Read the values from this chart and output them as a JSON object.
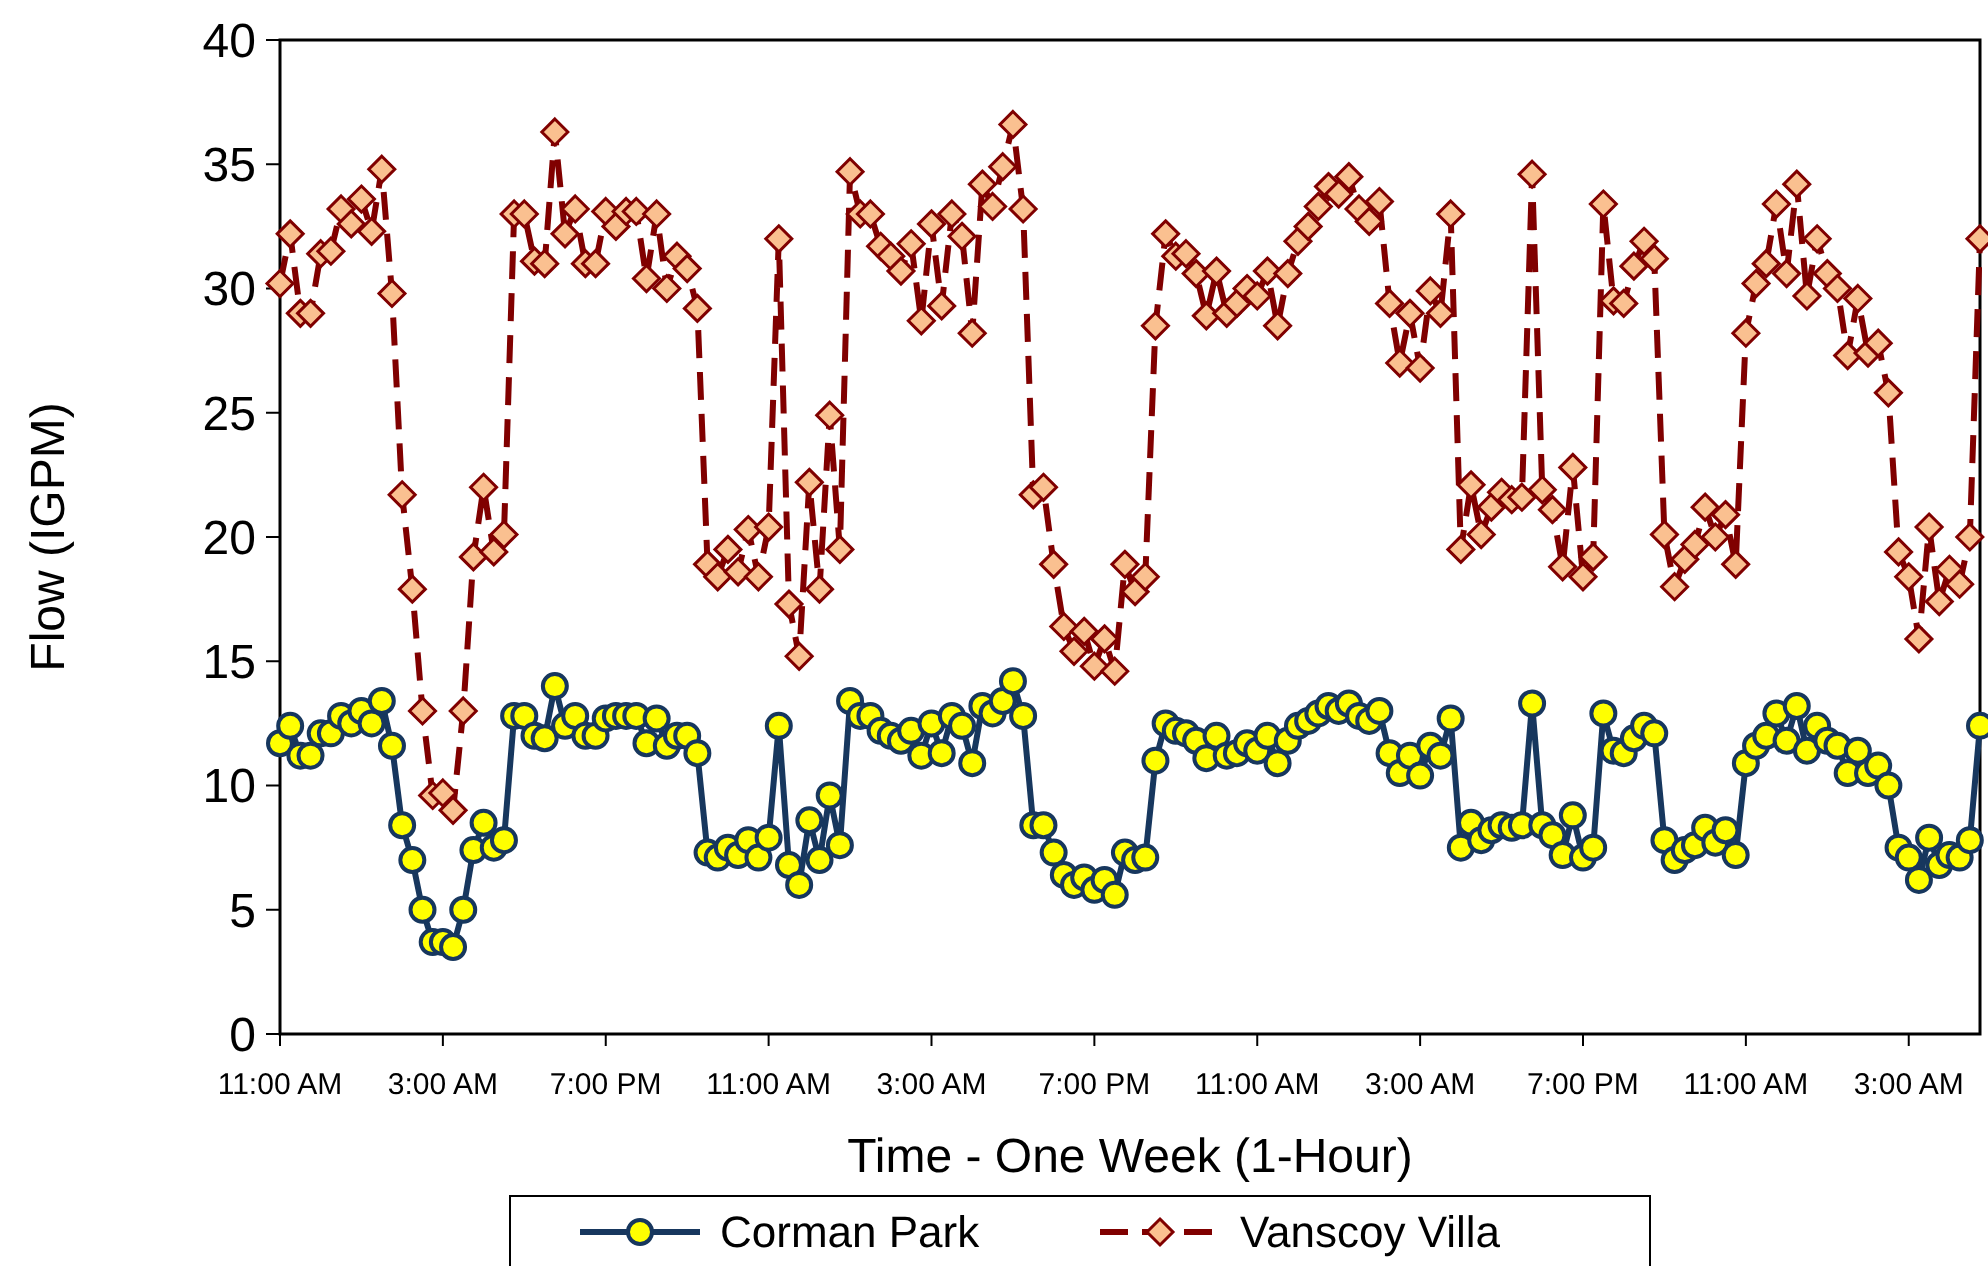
{
  "chart_data": {
    "type": "line",
    "xlabel": "Time - One Week (1-Hour)",
    "ylabel": "Flow (IGPM)",
    "categories": [
      "11:00 AM",
      null,
      null,
      null,
      null,
      null,
      null,
      null,
      null,
      null,
      null,
      null,
      null,
      null,
      null,
      null,
      "3:00 AM",
      null,
      null,
      null,
      null,
      null,
      null,
      null,
      null,
      null,
      null,
      null,
      null,
      null,
      null,
      null,
      "7:00 PM",
      null,
      null,
      null,
      null,
      null,
      null,
      null,
      null,
      null,
      null,
      null,
      null,
      null,
      null,
      null,
      "11:00 AM",
      null,
      null,
      null,
      null,
      null,
      null,
      null,
      null,
      null,
      null,
      null,
      null,
      null,
      null,
      null,
      "3:00 AM",
      null,
      null,
      null,
      null,
      null,
      null,
      null,
      null,
      null,
      null,
      null,
      null,
      null,
      null,
      null,
      "7:00 PM",
      null,
      null,
      null,
      null,
      null,
      null,
      null,
      null,
      null,
      null,
      null,
      null,
      null,
      null,
      null,
      "11:00 AM",
      null,
      null,
      null,
      null,
      null,
      null,
      null,
      null,
      null,
      null,
      null,
      null,
      null,
      null,
      null,
      "3:00 AM",
      null,
      null,
      null,
      null,
      null,
      null,
      null,
      null,
      null,
      null,
      null,
      null,
      null,
      null,
      null,
      "7:00 PM",
      null,
      null,
      null,
      null,
      null,
      null,
      null,
      null,
      null,
      null,
      null,
      null,
      null,
      null,
      null,
      "11:00 AM",
      null,
      null,
      null,
      null,
      null,
      null,
      null,
      null,
      null,
      null,
      null,
      null,
      null,
      null,
      null,
      "3:00 AM",
      null,
      null,
      null,
      null,
      null,
      null,
      null
    ],
    "ylim": [
      0,
      40
    ],
    "yticks": [
      0,
      5,
      10,
      15,
      20,
      25,
      30,
      35,
      40
    ],
    "grid": false,
    "legend": "bottom",
    "series": [
      {
        "name": "Corman Park",
        "color": "#17375e",
        "marker": "circle",
        "line_style": "solid",
        "values": [
          11.7,
          12.4,
          11.2,
          11.2,
          12.1,
          12.1,
          12.8,
          12.5,
          13.0,
          12.5,
          13.4,
          11.6,
          8.4,
          7.0,
          5.0,
          3.7,
          3.7,
          3.5,
          5.0,
          7.4,
          8.5,
          7.5,
          7.8,
          12.8,
          12.8,
          12.0,
          11.9,
          14.0,
          12.4,
          12.8,
          12.0,
          12.0,
          12.7,
          12.8,
          12.8,
          12.8,
          11.7,
          12.7,
          11.6,
          12.0,
          12.0,
          11.3,
          7.3,
          7.1,
          7.5,
          7.2,
          7.8,
          7.1,
          7.9,
          12.4,
          6.8,
          6.0,
          8.6,
          7.0,
          9.6,
          7.6,
          13.4,
          12.8,
          12.8,
          12.2,
          12.0,
          11.8,
          12.2,
          11.2,
          12.5,
          11.3,
          12.8,
          12.4,
          10.9,
          13.2,
          12.9,
          13.4,
          14.2,
          12.8,
          8.4,
          8.4,
          7.3,
          6.4,
          6.0,
          6.3,
          5.8,
          6.2,
          5.6,
          7.3,
          7.0,
          7.1,
          11.0,
          12.5,
          12.2,
          12.1,
          11.8,
          11.1,
          12.0,
          11.2,
          11.3,
          11.7,
          11.4,
          12.0,
          10.9,
          11.8,
          12.4,
          12.6,
          12.9,
          13.2,
          13.0,
          13.3,
          12.8,
          12.6,
          13.0,
          11.3,
          10.5,
          11.2,
          10.4,
          11.6,
          11.2,
          12.7,
          7.5,
          8.5,
          7.8,
          8.2,
          8.4,
          8.3,
          8.4,
          13.3,
          8.4,
          8.0,
          7.2,
          8.8,
          7.1,
          7.5,
          12.9,
          11.4,
          11.3,
          11.9,
          12.4,
          12.1,
          7.8,
          7.0,
          7.4,
          7.6,
          8.3,
          7.7,
          8.2,
          7.2,
          10.9,
          11.6,
          12.0,
          12.9,
          11.8,
          13.2,
          11.4,
          12.4,
          11.8,
          11.6,
          10.5,
          11.4,
          10.5,
          10.8,
          10.0,
          7.5,
          7.1,
          6.2,
          7.9,
          6.8,
          7.2,
          7.1,
          7.8,
          12.4
        ]
      },
      {
        "name": "Vanscoy Villa",
        "color": "#800000",
        "marker": "diamond",
        "line_style": "dashed",
        "values": [
          30.2,
          32.2,
          29.0,
          29.0,
          31.4,
          31.5,
          33.2,
          32.6,
          33.6,
          32.3,
          34.8,
          29.8,
          21.7,
          17.9,
          13.0,
          9.6,
          9.7,
          9.0,
          13.0,
          19.2,
          22.0,
          19.4,
          20.1,
          33.0,
          33.0,
          31.1,
          31.0,
          36.3,
          32.2,
          33.2,
          31.0,
          31.0,
          33.1,
          32.5,
          33.1,
          33.1,
          30.4,
          33.0,
          30.0,
          31.3,
          30.8,
          29.2,
          18.9,
          18.4,
          19.5,
          18.6,
          20.3,
          18.4,
          20.4,
          32.0,
          17.3,
          15.2,
          22.2,
          17.9,
          24.9,
          19.5,
          34.7,
          33.0,
          33.0,
          31.7,
          31.3,
          30.7,
          31.8,
          28.7,
          32.6,
          29.3,
          33.0,
          32.1,
          28.2,
          34.2,
          33.3,
          34.9,
          36.6,
          33.2,
          21.7,
          22.0,
          18.9,
          16.4,
          15.4,
          16.2,
          14.8,
          15.9,
          14.6,
          18.9,
          17.8,
          18.4,
          28.5,
          32.2,
          31.3,
          31.4,
          30.6,
          28.9,
          30.7,
          29.0,
          29.4,
          30.0,
          29.7,
          30.7,
          28.5,
          30.6,
          31.9,
          32.5,
          33.3,
          34.1,
          33.8,
          34.5,
          33.2,
          32.7,
          33.5,
          29.4,
          27.0,
          29.0,
          26.8,
          29.9,
          29.0,
          33.0,
          19.5,
          22.1,
          20.1,
          21.2,
          21.8,
          21.5,
          21.6,
          34.6,
          21.9,
          21.1,
          18.8,
          22.8,
          18.4,
          19.2,
          33.4,
          29.5,
          29.4,
          30.9,
          31.9,
          31.2,
          20.1,
          18.0,
          19.1,
          19.7,
          21.2,
          20.0,
          20.9,
          18.9,
          28.2,
          30.2,
          31.0,
          33.4,
          30.6,
          34.2,
          29.7,
          32.0,
          30.6,
          30.0,
          27.3,
          29.6,
          27.4,
          27.8,
          25.8,
          19.4,
          18.4,
          15.9,
          20.4,
          17.4,
          18.7,
          18.1,
          20.0,
          32.0
        ]
      }
    ]
  }
}
